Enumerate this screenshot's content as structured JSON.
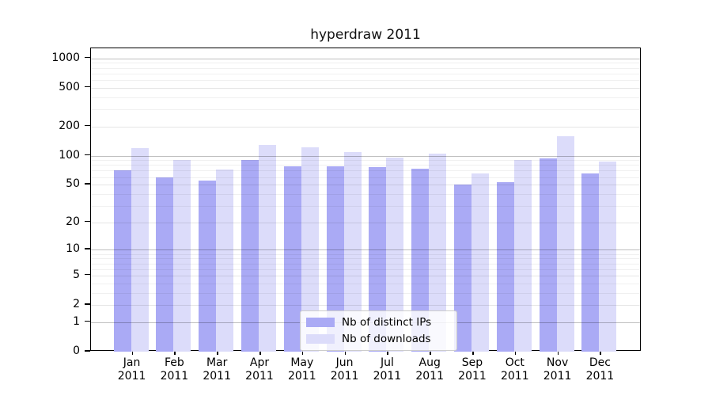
{
  "title": "hyperdraw 2011",
  "chart_data": {
    "type": "bar",
    "title": "hyperdraw 2011",
    "categories": [
      "Jan",
      "Feb",
      "Mar",
      "Apr",
      "May",
      "Jun",
      "Jul",
      "Aug",
      "Sep",
      "Oct",
      "Nov",
      "Dec"
    ],
    "category_year": "2011",
    "series": [
      {
        "name": "Nb of distinct IPs",
        "color": "#aaaaf5",
        "values": [
          70,
          60,
          55,
          91,
          77,
          78,
          76,
          73,
          50,
          53,
          94,
          65
        ]
      },
      {
        "name": "Nb of downloads",
        "color": "#dcdcfa",
        "values": [
          120,
          91,
          72,
          128,
          122,
          108,
          96,
          105,
          65,
          91,
          160,
          87
        ]
      }
    ],
    "y_ticks": [
      0,
      1,
      2,
      5,
      10,
      20,
      50,
      100,
      200,
      500,
      1000
    ],
    "y_minor_ticks": [
      3,
      4,
      6,
      7,
      8,
      9,
      30,
      40,
      60,
      70,
      80,
      90,
      300,
      400,
      600,
      700,
      800,
      900
    ],
    "y_decade_ticks": [
      1,
      10,
      100,
      1000
    ],
    "y_scale": "log(value+1)",
    "ylim": [
      0,
      1270
    ],
    "xlabel": "",
    "ylabel": "",
    "grid": true,
    "legend_position": "lower center"
  }
}
